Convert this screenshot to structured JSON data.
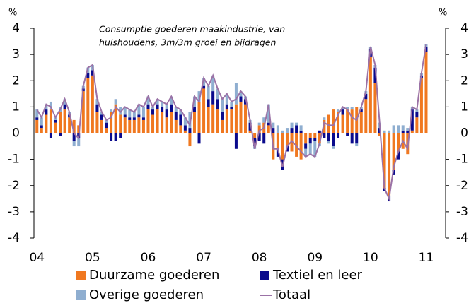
{
  "chart_data": {
    "type": "bar",
    "annotation": [
      "Consumptie goederen maakindustrie, van",
      "huishoudens, 3m/3m groei en bijdragen"
    ],
    "y_unit": "%",
    "y2_unit": "%",
    "categories": [
      "04",
      null,
      null,
      null,
      null,
      null,
      null,
      null,
      null,
      null,
      null,
      null,
      "05",
      null,
      null,
      null,
      null,
      null,
      null,
      null,
      null,
      null,
      null,
      null,
      "06",
      null,
      null,
      null,
      null,
      null,
      null,
      null,
      null,
      null,
      null,
      null,
      "07",
      null,
      null,
      null,
      null,
      null,
      null,
      null,
      null,
      null,
      null,
      null,
      "08",
      null,
      null,
      null,
      null,
      null,
      null,
      null,
      null,
      null,
      null,
      null,
      "09",
      null,
      null,
      null,
      null,
      null,
      null,
      null,
      null,
      null,
      null,
      null,
      "10",
      null,
      null,
      null,
      null,
      null,
      null,
      null,
      null,
      null,
      null,
      null,
      "11"
    ],
    "series": [
      {
        "name": "Duurzame goederen",
        "color": "#f07820",
        "values": [
          0.5,
          0.2,
          0.7,
          0.9,
          0.4,
          0.8,
          0.9,
          0.6,
          0.5,
          0.3,
          1.6,
          2.1,
          2.2,
          0.8,
          0.5,
          0.2,
          0.8,
          1.1,
          0.7,
          0.6,
          0.5,
          0.5,
          0.6,
          0.5,
          0.9,
          0.7,
          0.9,
          0.8,
          0.6,
          0.8,
          0.5,
          0.3,
          0.1,
          -0.5,
          0.8,
          1.2,
          1.7,
          1.0,
          1.1,
          0.9,
          0.5,
          0.9,
          0.9,
          1.1,
          1.2,
          1.1,
          0.1,
          -0.2,
          0.3,
          0.4,
          0.3,
          -1.0,
          -0.6,
          -1.0,
          -0.5,
          -0.7,
          -0.9,
          -1.0,
          -0.4,
          -0.2,
          -0.2,
          -0.4,
          0.5,
          0.7,
          0.9,
          0.8,
          0.7,
          0.9,
          0.9,
          1.0,
          0.8,
          1.3,
          2.9,
          1.9,
          -0.1,
          -2.1,
          -2.4,
          -1.4,
          -0.7,
          -0.6,
          -0.8,
          0.1,
          0.6,
          2.1,
          3.1
        ]
      },
      {
        "name": "Textiel en leer",
        "color": "#0a0a8c",
        "values": [
          0.1,
          0.1,
          0.2,
          -0.2,
          0.1,
          -0.1,
          0.2,
          0.1,
          -0.3,
          -0.2,
          0.1,
          0.2,
          0.2,
          0.3,
          0.2,
          0.2,
          -0.3,
          -0.3,
          -0.2,
          0.1,
          0.1,
          0.1,
          0.1,
          0.1,
          0.2,
          0.2,
          0.2,
          0.2,
          0.3,
          0.3,
          0.3,
          0.4,
          0.2,
          0.2,
          0.2,
          -0.4,
          0.1,
          0.3,
          0.5,
          0.4,
          0.3,
          0.2,
          0.1,
          -0.6,
          0.2,
          0.2,
          0.3,
          -0.3,
          -0.3,
          -0.4,
          0.1,
          0.2,
          -0.3,
          -0.4,
          -0.2,
          0.2,
          0.3,
          0.1,
          -0.2,
          -0.2,
          -0.1,
          0.1,
          -0.2,
          -0.3,
          -0.5,
          -0.2,
          0.2,
          -0.1,
          -0.4,
          -0.4,
          0.1,
          0.2,
          0.3,
          0.6,
          0.2,
          -0.1,
          -0.2,
          -0.2,
          -0.3,
          0.1,
          0.1,
          0.8,
          0.2,
          0.1,
          0.2
        ]
      },
      {
        "name": "Overige goederen",
        "color": "#8faed0",
        "values": [
          0.3,
          0.3,
          0.2,
          0.3,
          0.1,
          0.2,
          0.2,
          0.1,
          -0.2,
          -0.3,
          0.1,
          0.2,
          0.2,
          0.2,
          0.1,
          0.1,
          0.1,
          0.2,
          0.3,
          0.3,
          0.3,
          0.2,
          0.4,
          0.4,
          0.3,
          0.1,
          0.2,
          0.2,
          0.2,
          0.3,
          0.2,
          0.2,
          0.3,
          0.6,
          0.4,
          0.4,
          0.3,
          0.5,
          0.6,
          0.4,
          0.5,
          0.4,
          0.2,
          0.8,
          0.2,
          0.1,
          0.1,
          -0.1,
          0.1,
          0.2,
          0.7,
          0.2,
          0.3,
          0.1,
          0.2,
          0.2,
          0.1,
          0.2,
          -0.3,
          -0.4,
          -0.6,
          -0.1,
          0.1,
          -0.1,
          -0.1,
          0.1,
          0.1,
          0.1,
          0.1,
          -0.1,
          0.1,
          0.1,
          0.1,
          0.1,
          0.2,
          0.1,
          0.1,
          0.3,
          0.3,
          0.2,
          0.1,
          0.1,
          0.1,
          0.1,
          0.1
        ]
      },
      {
        "name": "Totaal",
        "type": "line",
        "color": "#9b72a6",
        "values": [
          0.9,
          0.6,
          1.1,
          1.0,
          0.6,
          0.9,
          1.3,
          0.8,
          0.0,
          -0.2,
          1.8,
          2.5,
          2.6,
          1.3,
          0.8,
          0.5,
          0.6,
          1.0,
          0.8,
          1.0,
          0.9,
          0.8,
          1.1,
          1.0,
          1.4,
          1.0,
          1.3,
          1.2,
          1.1,
          1.4,
          1.0,
          0.9,
          0.6,
          0.3,
          1.4,
          1.2,
          2.1,
          1.8,
          2.2,
          1.7,
          1.3,
          1.5,
          1.2,
          1.3,
          1.6,
          1.4,
          0.5,
          -0.6,
          0.1,
          0.2,
          1.1,
          -0.6,
          -0.6,
          -1.3,
          -0.5,
          -0.3,
          -0.5,
          -0.7,
          -0.9,
          -0.8,
          -0.9,
          -0.4,
          0.4,
          0.3,
          0.3,
          0.7,
          1.0,
          0.9,
          0.6,
          0.5,
          1.0,
          1.6,
          3.3,
          2.6,
          0.3,
          -2.1,
          -2.5,
          -1.3,
          -0.7,
          -0.3,
          -0.6,
          1.0,
          0.9,
          2.3,
          3.4
        ]
      }
    ],
    "ylim": [
      -4,
      4
    ],
    "yticks": [
      -4,
      -3,
      -2,
      -1,
      0,
      1,
      2,
      3,
      4
    ],
    "y2lim": [
      -4,
      4
    ],
    "y2ticks": [
      -4,
      -3,
      -2,
      -1,
      0,
      1,
      2,
      3,
      4
    ],
    "stacked": true
  }
}
